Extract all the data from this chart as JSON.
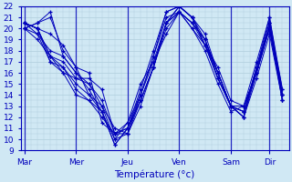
{
  "xlabel": "Température (°c)",
  "days": [
    "Mar",
    "Mer",
    "Jeu",
    "Ven",
    "Sam",
    "Dir"
  ],
  "day_positions": [
    0,
    4,
    8,
    12,
    16,
    19
  ],
  "n_total_steps": 21,
  "xlim": [
    -0.3,
    20.5
  ],
  "ylim": [
    9,
    22
  ],
  "yticks": [
    9,
    10,
    11,
    12,
    13,
    14,
    15,
    16,
    17,
    18,
    19,
    20,
    21,
    22
  ],
  "bg_color": "#d0e8f4",
  "line_color": "#0000bb",
  "grid_color": "#b0cedd",
  "series": [
    [
      20.5,
      20.0,
      17.5,
      16.5,
      14.5,
      13.5,
      12.5,
      9.5,
      11.0,
      13.5,
      16.5,
      20.5,
      22.0,
      21.0,
      19.0,
      16.0,
      13.0,
      12.5,
      16.0,
      20.5,
      14.5
    ],
    [
      20.5,
      20.0,
      17.0,
      16.0,
      15.5,
      15.5,
      14.5,
      10.5,
      10.5,
      13.5,
      16.5,
      20.0,
      21.5,
      20.5,
      18.5,
      15.5,
      13.0,
      13.0,
      16.0,
      20.0,
      14.0
    ],
    [
      20.0,
      19.5,
      17.0,
      16.5,
      15.0,
      14.0,
      13.0,
      10.0,
      10.5,
      14.0,
      17.0,
      20.5,
      21.5,
      20.0,
      18.5,
      15.5,
      13.0,
      12.5,
      16.5,
      20.0,
      14.0
    ],
    [
      20.5,
      20.0,
      17.5,
      16.0,
      14.0,
      13.5,
      12.0,
      10.5,
      11.5,
      15.0,
      17.0,
      19.5,
      21.5,
      20.0,
      18.0,
      15.0,
      12.5,
      13.0,
      16.0,
      20.0,
      13.5
    ],
    [
      20.5,
      19.5,
      18.0,
      17.5,
      16.0,
      15.0,
      13.5,
      10.5,
      11.0,
      14.0,
      17.5,
      21.0,
      21.5,
      20.5,
      19.0,
      16.0,
      13.0,
      12.5,
      16.5,
      20.5,
      14.0
    ],
    [
      20.0,
      19.0,
      17.5,
      17.0,
      15.5,
      15.0,
      13.0,
      11.0,
      10.5,
      13.0,
      16.5,
      20.5,
      21.5,
      20.5,
      19.0,
      15.5,
      13.0,
      12.0,
      15.5,
      19.5,
      13.5
    ],
    [
      20.0,
      20.5,
      21.0,
      18.0,
      16.5,
      14.0,
      12.5,
      10.0,
      11.5,
      14.0,
      17.5,
      21.5,
      22.0,
      21.0,
      18.5,
      16.5,
      13.5,
      13.0,
      17.0,
      21.0,
      14.5
    ],
    [
      20.5,
      20.0,
      19.5,
      18.5,
      16.5,
      16.0,
      11.5,
      10.5,
      11.0,
      14.5,
      18.0,
      21.5,
      22.0,
      21.0,
      19.5,
      16.0,
      13.0,
      12.0,
      16.5,
      21.0,
      14.0
    ],
    [
      20.0,
      20.5,
      21.5,
      17.5,
      16.0,
      14.5,
      12.5,
      9.5,
      11.0,
      13.5,
      16.5,
      20.5,
      22.0,
      21.0,
      18.5,
      16.0,
      13.0,
      12.0,
      16.0,
      20.5,
      13.5
    ]
  ]
}
